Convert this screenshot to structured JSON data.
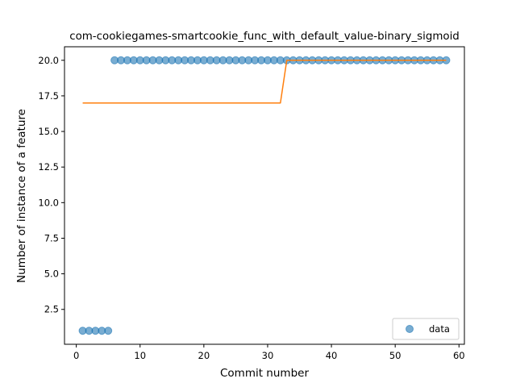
{
  "chart_data": {
    "type": "scatter",
    "title": "com-cookiegames-smartcookie_func_with_default_value-binary_sigmoid",
    "xlabel": "Commit number",
    "ylabel": "Number of instance of a feature",
    "xlim": [
      -1.85,
      60.85
    ],
    "ylim": [
      0.05,
      20.95
    ],
    "xticks": [
      0,
      10,
      20,
      30,
      40,
      50,
      60
    ],
    "xtick_labels": [
      "0",
      "10",
      "20",
      "30",
      "40",
      "50",
      "60"
    ],
    "yticks": [
      2.5,
      5.0,
      7.5,
      10.0,
      12.5,
      15.0,
      17.5,
      20.0
    ],
    "ytick_labels": [
      "2.5",
      "5.0",
      "7.5",
      "10.0",
      "12.5",
      "15.0",
      "17.5",
      "20.0"
    ],
    "grid": false,
    "legend": {
      "position": "lower-right",
      "entries": [
        "data"
      ]
    },
    "series": [
      {
        "name": "data",
        "kind": "scatter",
        "color": "#1f77b4",
        "x": [
          1,
          2,
          3,
          4,
          5,
          6,
          7,
          8,
          9,
          10,
          11,
          12,
          13,
          14,
          15,
          16,
          17,
          18,
          19,
          20,
          21,
          22,
          23,
          24,
          25,
          26,
          27,
          28,
          29,
          30,
          31,
          32,
          33,
          34,
          35,
          36,
          37,
          38,
          39,
          40,
          41,
          42,
          43,
          44,
          45,
          46,
          47,
          48,
          49,
          50,
          51,
          52,
          53,
          54,
          55,
          56,
          57,
          58
        ],
        "y": [
          1,
          1,
          1,
          1,
          1,
          20,
          20,
          20,
          20,
          20,
          20,
          20,
          20,
          20,
          20,
          20,
          20,
          20,
          20,
          20,
          20,
          20,
          20,
          20,
          20,
          20,
          20,
          20,
          20,
          20,
          20,
          20,
          20,
          20,
          20,
          20,
          20,
          20,
          20,
          20,
          20,
          20,
          20,
          20,
          20,
          20,
          20,
          20,
          20,
          20,
          20,
          20,
          20,
          20,
          20,
          20,
          20,
          20
        ]
      },
      {
        "kind": "line",
        "color": "#ff7f0e",
        "x": [
          1,
          2,
          3,
          4,
          5,
          6,
          7,
          8,
          9,
          10,
          11,
          12,
          13,
          14,
          15,
          16,
          17,
          18,
          19,
          20,
          21,
          22,
          23,
          24,
          25,
          26,
          27,
          28,
          29,
          30,
          31,
          32,
          33,
          34,
          35,
          36,
          37,
          38,
          39,
          40,
          41,
          42,
          43,
          44,
          45,
          46,
          47,
          48,
          49,
          50,
          51,
          52,
          53,
          54,
          55,
          56,
          57,
          58
        ],
        "y": [
          17,
          17,
          17,
          17,
          17,
          17,
          17,
          17,
          17,
          17,
          17,
          17,
          17,
          17,
          17,
          17,
          17,
          17,
          17,
          17,
          17,
          17,
          17,
          17,
          17,
          17,
          17,
          17,
          17,
          17,
          17,
          17,
          20,
          20,
          20,
          20,
          20,
          20,
          20,
          20,
          20,
          20,
          20,
          20,
          20,
          20,
          20,
          20,
          20,
          20,
          20,
          20,
          20,
          20,
          20,
          20,
          20,
          20
        ]
      }
    ]
  }
}
